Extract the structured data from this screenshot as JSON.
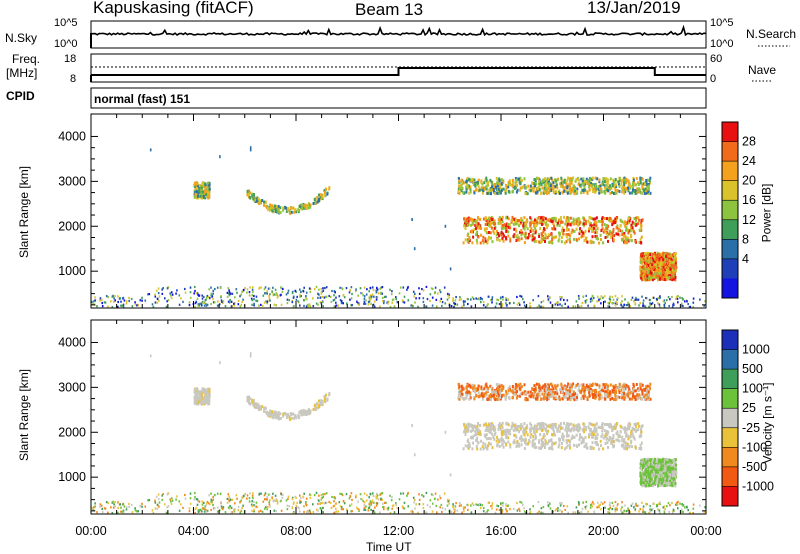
{
  "header": {
    "station": "Kapuskasing (fitACF)",
    "beam": "Beam 13",
    "date": "13/Jan/2019"
  },
  "panels": {
    "nsky": {
      "label": "N.Sky",
      "left_ticks": [
        "10^5",
        "10^0"
      ],
      "right_ticks": [
        "10^5",
        "10^0"
      ],
      "right_label": "N.Search"
    },
    "freq": {
      "label_line1": "Freq.",
      "label_line2": "[MHz]",
      "left_ticks": [
        "18",
        "8"
      ],
      "right_ticks": [
        "60",
        "0"
      ],
      "right_label": "Nave"
    },
    "cpid": {
      "label": "CPID",
      "mode": "normal (fast) 151"
    }
  },
  "axes": {
    "ylabel": "Slant Range [km]",
    "xlabel": "Time UT",
    "y_ticks": [
      "4000",
      "3000",
      "2000",
      "1000"
    ],
    "x_ticks": [
      "00:00",
      "04:00",
      "08:00",
      "12:00",
      "16:00",
      "20:00",
      "00:00"
    ]
  },
  "power_colorbar": {
    "label": "Power [dB]",
    "ticks": [
      "28",
      "24",
      "20",
      "16",
      "12",
      "8",
      "4"
    ],
    "colors": [
      "#e81010",
      "#f26b1a",
      "#f4a21e",
      "#d9c22b",
      "#8cc43f",
      "#3f9e5a",
      "#2b6fa8",
      "#1e3fb8",
      "#1414e0"
    ]
  },
  "velocity_colorbar": {
    "label": "Velocity [m s⁻¹]",
    "ticks": [
      "1000",
      "500",
      "100",
      "25",
      "-25",
      "-100",
      "-500",
      "-1000"
    ],
    "colors": [
      "#1c2fb8",
      "#2a6fa8",
      "#3f9e5a",
      "#6cc23a",
      "#c8c8c0",
      "#e9c23a",
      "#f08a1e",
      "#f25a14",
      "#e81010"
    ]
  },
  "chart_data": {
    "type": "heatmap",
    "x_range_hours": [
      0,
      24
    ],
    "y_range_km": [
      180,
      4500
    ],
    "frequency_steps": [
      {
        "start_h": 0,
        "end_h": 12,
        "freq_mhz": 10.5
      },
      {
        "start_h": 12,
        "end_h": 22,
        "freq_mhz": 13
      },
      {
        "start_h": 22,
        "end_h": 24,
        "freq_mhz": 10.5
      }
    ],
    "echo_regions": [
      {
        "t_start_h": 4.0,
        "t_end_h": 4.6,
        "range_km": 2800,
        "power_db": 10,
        "velocity": "-25..25"
      },
      {
        "t_start_h": 6.0,
        "t_end_h": 9.3,
        "range_km": 2500,
        "power_db": 8,
        "velocity": "-25..25"
      },
      {
        "t_start_h": 14.3,
        "t_end_h": 21.8,
        "range_km": 2900,
        "power_db": 20,
        "velocity": "-100..-500"
      },
      {
        "t_start_h": 14.5,
        "t_end_h": 21.5,
        "range_km": 1800,
        "power_db": 24,
        "velocity": "-25..25"
      },
      {
        "t_start_h": 21.4,
        "t_end_h": 22.8,
        "range_km": 1100,
        "power_db": 28,
        "velocity": "25..100"
      }
    ]
  }
}
